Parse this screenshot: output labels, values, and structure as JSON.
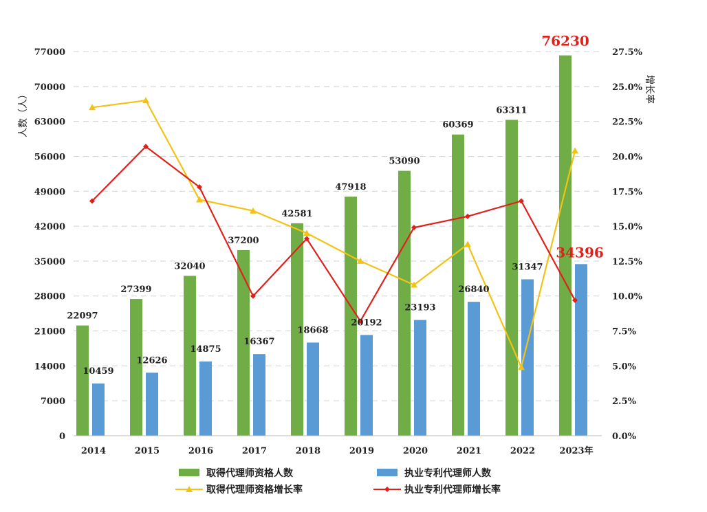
{
  "chart_data": {
    "type": "bar",
    "title": "",
    "categories": [
      "2014",
      "2015",
      "2016",
      "2017",
      "2018",
      "2019",
      "2020",
      "2021",
      "2022",
      "2023年"
    ],
    "ylabel": "人数（人）",
    "y2label": "增长率",
    "ylim": [
      0,
      77000
    ],
    "yticks": [
      "0",
      "7000",
      "14000",
      "21000",
      "28000",
      "35000",
      "42000",
      "49000",
      "56000",
      "63000",
      "70000",
      "77000"
    ],
    "y2lim": [
      0,
      27.5
    ],
    "y2ticks": [
      "0.0%",
      "2.5%",
      "5.0%",
      "7.5%",
      "10.0%",
      "12.5%",
      "15.0%",
      "17.5%",
      "20.0%",
      "22.5%",
      "25.0%",
      "27.5%"
    ],
    "grid": true,
    "legend_position": "bottom",
    "series": [
      {
        "name": "取得代理师资格人数",
        "kind": "bar",
        "axis": "left",
        "color": "#70AD47",
        "values": [
          22097,
          27399,
          32040,
          37200,
          42581,
          47918,
          53090,
          60369,
          63311,
          76230
        ],
        "labels": [
          "22097",
          "27399",
          "32040",
          "37200",
          "42581",
          "47918",
          "53090",
          "60369",
          "63311",
          "76230"
        ]
      },
      {
        "name": "执业专利代理师人数",
        "kind": "bar",
        "axis": "left",
        "color": "#5B9BD5",
        "values": [
          10459,
          12626,
          14875,
          16367,
          18668,
          20192,
          23193,
          26840,
          31347,
          34396
        ],
        "labels": [
          "10459",
          "12626",
          "14875",
          "16367",
          "18668",
          "20192",
          "23193",
          "26840",
          "31347",
          "34396"
        ]
      },
      {
        "name": "取得代理师资格增长率",
        "kind": "line",
        "axis": "right",
        "color": "#F2C314",
        "marker": "triangle",
        "values": [
          23.5,
          24.0,
          16.9,
          16.1,
          14.5,
          12.5,
          10.8,
          13.7,
          4.9,
          20.4
        ]
      },
      {
        "name": "执业专利代理师增长率",
        "kind": "line",
        "axis": "right",
        "color": "#E0201B",
        "marker": "diamond",
        "values": [
          16.8,
          20.7,
          17.8,
          10.0,
          14.1,
          8.2,
          14.9,
          15.7,
          16.8,
          9.7
        ]
      }
    ],
    "highlight_color": "#E0201B"
  }
}
